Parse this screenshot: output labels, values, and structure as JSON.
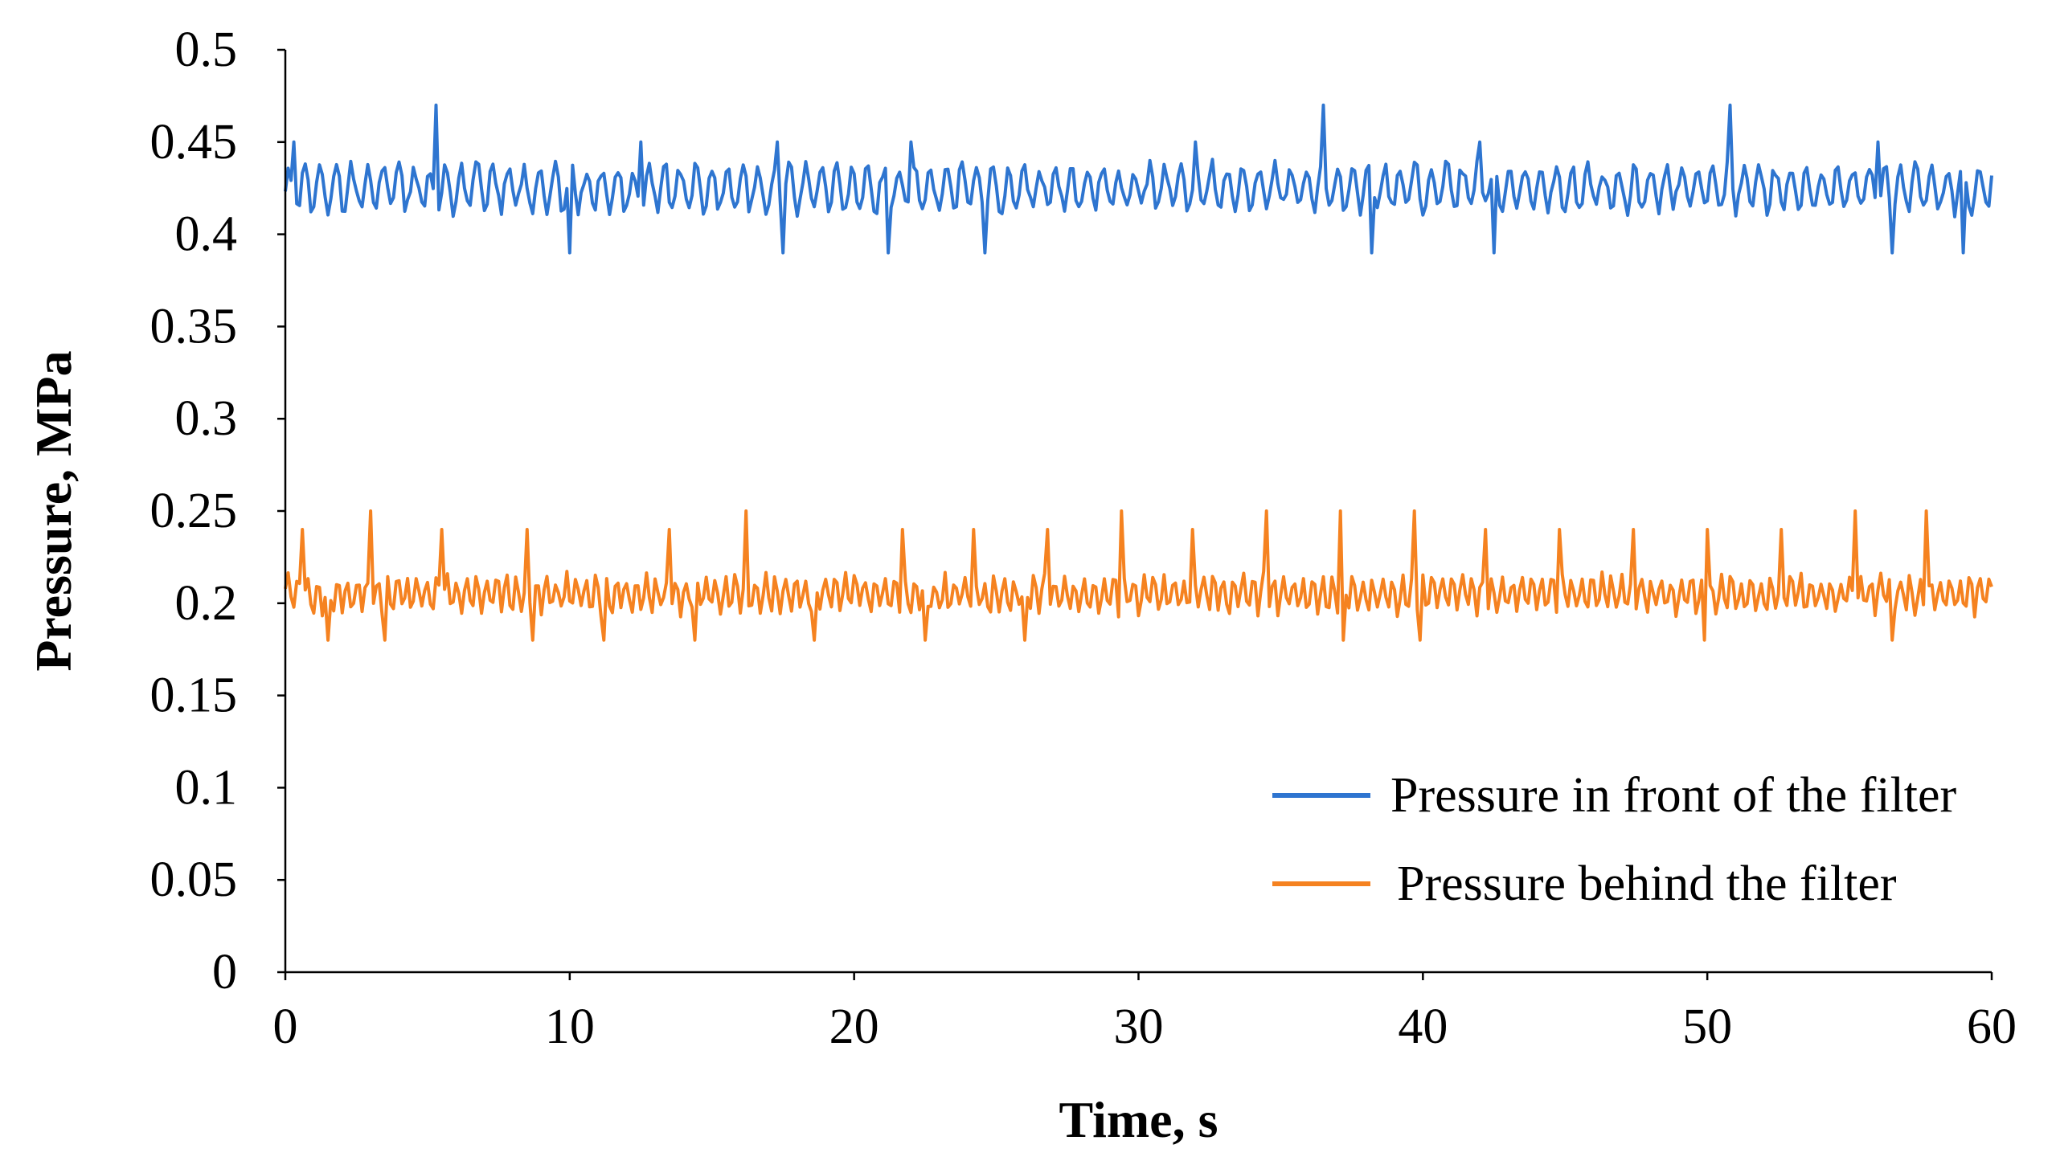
{
  "chart_data": {
    "type": "line",
    "title": "",
    "xlabel": "Time, s",
    "ylabel": "Pressure, MPa",
    "xlim": [
      0,
      60
    ],
    "ylim": [
      0,
      0.5
    ],
    "x_ticks": [
      0,
      10,
      20,
      30,
      40,
      50,
      60
    ],
    "x_tick_labels": [
      "0",
      "10",
      "20",
      "30",
      "40",
      "50",
      "60"
    ],
    "y_ticks": [
      0,
      0.05,
      0.1,
      0.15,
      0.2,
      0.25,
      0.3,
      0.35,
      0.4,
      0.45,
      0.5
    ],
    "y_tick_labels": [
      "0",
      "0.05",
      "0.1",
      "0.15",
      "0.2",
      "0.25",
      "0.3",
      "0.35",
      "0.4",
      "0.45",
      "0.5"
    ],
    "grid": false,
    "legend_position": "bottom-right",
    "sample_step_s": 0.1,
    "series": [
      {
        "name": "Pressure in front of the filter",
        "color": "#2E75D0",
        "mean": 0.425,
        "amplitude": 0.015,
        "oscillation_period_s": 0.55,
        "min": 0.39,
        "max": 0.47,
        "spikes": [
          {
            "x": 0.3,
            "y": 0.45
          },
          {
            "x": 5.3,
            "y": 0.47
          },
          {
            "x": 12.5,
            "y": 0.45
          },
          {
            "x": 17.3,
            "y": 0.45
          },
          {
            "x": 22.0,
            "y": 0.45
          },
          {
            "x": 32.0,
            "y": 0.45
          },
          {
            "x": 36.5,
            "y": 0.47
          },
          {
            "x": 42.0,
            "y": 0.45
          },
          {
            "x": 50.8,
            "y": 0.47
          },
          {
            "x": 56.0,
            "y": 0.45
          }
        ],
        "dips": [
          {
            "x": 10.0,
            "y": 0.39
          },
          {
            "x": 17.5,
            "y": 0.39
          },
          {
            "x": 21.2,
            "y": 0.39
          },
          {
            "x": 24.6,
            "y": 0.39
          },
          {
            "x": 38.2,
            "y": 0.39
          },
          {
            "x": 42.5,
            "y": 0.39
          },
          {
            "x": 56.5,
            "y": 0.39
          },
          {
            "x": 59.0,
            "y": 0.39
          }
        ]
      },
      {
        "name": "Pressure behind the filter",
        "color": "#F58220",
        "mean": 0.205,
        "amplitude": 0.012,
        "oscillation_period_s": 0.35,
        "min": 0.18,
        "max": 0.25,
        "spikes": [
          {
            "x": 0.6,
            "y": 0.24
          },
          {
            "x": 3.0,
            "y": 0.25
          },
          {
            "x": 5.5,
            "y": 0.24
          },
          {
            "x": 8.5,
            "y": 0.24
          },
          {
            "x": 13.5,
            "y": 0.24
          },
          {
            "x": 16.2,
            "y": 0.25
          },
          {
            "x": 21.7,
            "y": 0.24
          },
          {
            "x": 24.2,
            "y": 0.24
          },
          {
            "x": 26.8,
            "y": 0.24
          },
          {
            "x": 29.4,
            "y": 0.25
          },
          {
            "x": 31.9,
            "y": 0.24
          },
          {
            "x": 34.5,
            "y": 0.25
          },
          {
            "x": 37.1,
            "y": 0.25
          },
          {
            "x": 39.7,
            "y": 0.25
          },
          {
            "x": 42.2,
            "y": 0.24
          },
          {
            "x": 44.8,
            "y": 0.24
          },
          {
            "x": 47.4,
            "y": 0.24
          },
          {
            "x": 50.0,
            "y": 0.24
          },
          {
            "x": 52.6,
            "y": 0.24
          },
          {
            "x": 55.2,
            "y": 0.25
          },
          {
            "x": 57.7,
            "y": 0.25
          }
        ],
        "dips": [
          {
            "x": 1.5,
            "y": 0.18
          },
          {
            "x": 3.5,
            "y": 0.18
          },
          {
            "x": 8.7,
            "y": 0.18
          },
          {
            "x": 11.2,
            "y": 0.18
          },
          {
            "x": 14.4,
            "y": 0.18
          },
          {
            "x": 18.6,
            "y": 0.18
          },
          {
            "x": 22.5,
            "y": 0.18
          },
          {
            "x": 26.0,
            "y": 0.18
          },
          {
            "x": 37.2,
            "y": 0.18
          },
          {
            "x": 39.9,
            "y": 0.18
          },
          {
            "x": 49.9,
            "y": 0.18
          },
          {
            "x": 56.5,
            "y": 0.18
          }
        ]
      }
    ]
  }
}
